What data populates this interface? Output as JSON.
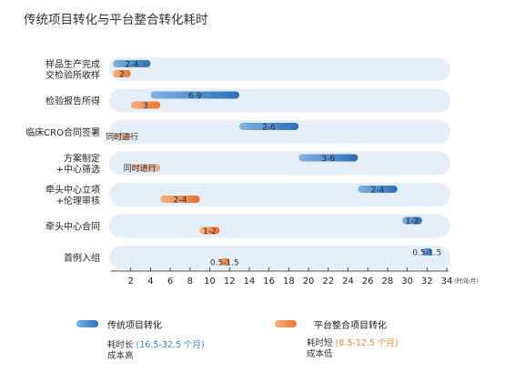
{
  "title": "传统项目转化与平台整合转化耗时",
  "colors": {
    "row_bg": "#e6eef7",
    "traditional_dark": "#2d6fb5",
    "traditional_light": "#7fb3e3",
    "platform_dark": "#e8742a",
    "platform_light": "#f6b27c",
    "axis": "#444444"
  },
  "chart_data": {
    "type": "gantt",
    "title": "传统项目转化与平台整合转化耗时",
    "xlabel": "(时间/月)",
    "xlim": [
      0,
      34
    ],
    "xticks": [
      2,
      4,
      6,
      8,
      10,
      12,
      14,
      16,
      18,
      20,
      22,
      24,
      26,
      28,
      30,
      32,
      34
    ],
    "rows": [
      {
        "label_lines": [
          "样品生产完成",
          "交检验所收样"
        ],
        "traditional": {
          "start": 0.2,
          "end": 4.0,
          "label": "2-4"
        },
        "platform": {
          "start": 0.2,
          "end": 2.0,
          "label": "2"
        }
      },
      {
        "label_lines": [
          "检验报告所得"
        ],
        "traditional": {
          "start": 4.0,
          "end": 13.0,
          "label": "6-9"
        },
        "platform": {
          "start": 2.0,
          "end": 5.0,
          "label": "3"
        }
      },
      {
        "label_lines": [
          "临床CRO合同签署"
        ],
        "traditional": {
          "start": 13.0,
          "end": 19.0,
          "label": "2-6"
        },
        "platform": {
          "start": 0.2,
          "end": 2.0,
          "label": "同时进行"
        }
      },
      {
        "label_lines": [
          "方案制定",
          "+中心筛选"
        ],
        "traditional": {
          "start": 19.0,
          "end": 25.0,
          "label": "3-6"
        },
        "platform": {
          "start": 2.0,
          "end": 5.0,
          "label": "同时进行"
        }
      },
      {
        "label_lines": [
          "牵头中心立项",
          "+伦理审核"
        ],
        "traditional": {
          "start": 25.0,
          "end": 29.0,
          "label": "2-4"
        },
        "platform": {
          "start": 5.0,
          "end": 9.0,
          "label": "2-4"
        }
      },
      {
        "label_lines": [
          "牵头中心合同"
        ],
        "traditional": {
          "start": 29.5,
          "end": 31.5,
          "label": "1-2"
        },
        "platform": {
          "start": 9.0,
          "end": 11.0,
          "label": "1-2"
        }
      },
      {
        "label_lines": [
          "首例入组"
        ],
        "traditional": {
          "start": 31.5,
          "end": 32.5,
          "label": "0.5-1.5"
        },
        "platform": {
          "start": 11.0,
          "end": 12.0,
          "label": "0.5-1.5"
        }
      }
    ]
  },
  "legend": {
    "traditional": {
      "label": "传统项目转化",
      "note_line1_prefix": "耗时长",
      "note_line1_highlight": "(16.5-32.5 个月)",
      "note_line2": "成本高"
    },
    "platform": {
      "label": "平台整合项目转化",
      "note_line1_prefix": "耗时短",
      "note_line1_highlight": "(8.5-12.5 个月)",
      "note_line2": "成本低"
    }
  }
}
